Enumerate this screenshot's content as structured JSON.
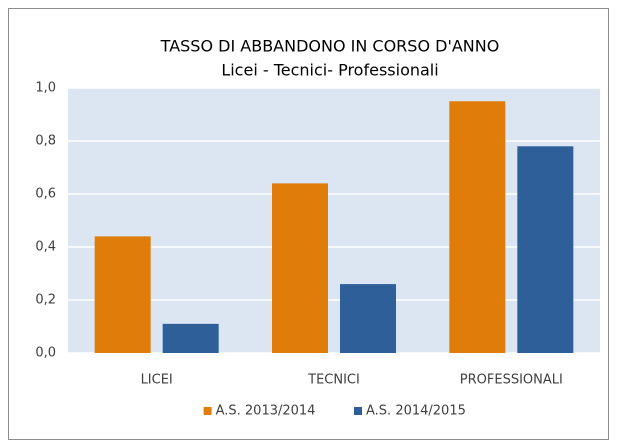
{
  "chart_data": {
    "type": "bar",
    "title": "TASSO DI ABBANDONO IN CORSO D'ANNO",
    "subtitle": "Licei - Tecnici- Professionali",
    "categories": [
      "LICEI",
      "TECNICI",
      "PROFESSIONALI"
    ],
    "series": [
      {
        "name": "A.S. 2013/2014",
        "color": "#e07c0a",
        "values": [
          0.44,
          0.64,
          0.95
        ]
      },
      {
        "name": "A.S. 2014/2015",
        "color": "#2f5f98",
        "values": [
          0.11,
          0.26,
          0.78
        ]
      }
    ],
    "ylim": [
      0,
      1
    ],
    "yticks": [
      {
        "value": 0,
        "label": "0,0"
      },
      {
        "value": 0.2,
        "label": "0,2"
      },
      {
        "value": 0.4,
        "label": "0,4"
      },
      {
        "value": 0.6,
        "label": "0,6"
      },
      {
        "value": 0.8,
        "label": "0,8"
      },
      {
        "value": 1,
        "label": "1,0"
      }
    ],
    "grid": true,
    "legend": "bottom"
  }
}
